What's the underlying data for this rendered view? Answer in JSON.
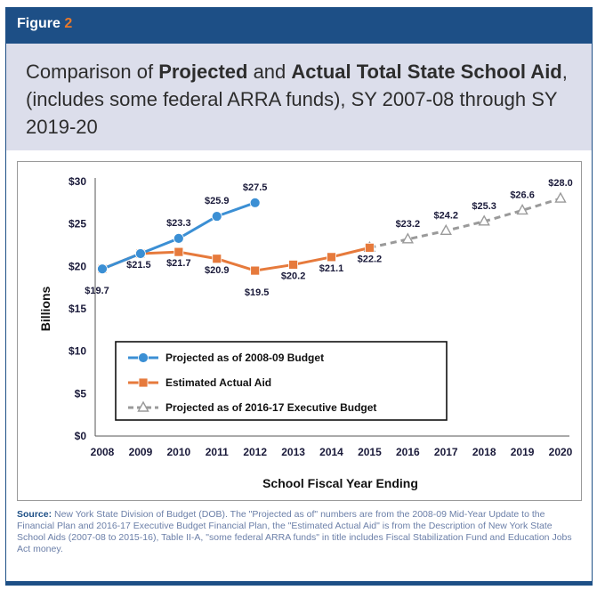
{
  "figure_label": "Figure",
  "figure_number": "2",
  "title": {
    "part1": "Comparison of ",
    "bold1": "Projected",
    "part2": " and ",
    "bold2": "Actual Total State School Aid",
    "part3": ", (includes some federal ARRA funds), SY 2007-08 through SY 2019-20"
  },
  "source": {
    "label": "Source:",
    "text": " New York State Division of Budget (DOB). The \"Projected as of\" numbers are from the 2008-09 Mid-Year Update to the Financial Plan and 2016-17 Executive Budget Financial Plan, the \"Estimated Actual Aid\" is from the Description of New York State School Aids (2007-08 to 2015-16), Table II-A, \"some federal ARRA funds\" in title includes Fiscal Stabilization Fund and Education Jobs Act money."
  },
  "colors": {
    "header": "#1d4f86",
    "band": "#dcdeeb",
    "series_projected_2008": "#3b8fd4",
    "series_actual": "#e67a3c",
    "series_projected_2016": "#9a9a9a"
  },
  "chart_data": {
    "type": "line",
    "x": [
      2008,
      2009,
      2010,
      2011,
      2012,
      2013,
      2014,
      2015,
      2016,
      2017,
      2018,
      2019,
      2020
    ],
    "xlabel": "School Fiscal Year Ending",
    "ylabel": "Billions",
    "ylim": [
      0,
      30
    ],
    "yticks": [
      0,
      5,
      10,
      15,
      20,
      25,
      30
    ],
    "ytick_labels": [
      "$0",
      "$5",
      "$10",
      "$15",
      "$20",
      "$25",
      "$30"
    ],
    "legend_position": "bottom-left",
    "grid": false,
    "series": [
      {
        "name": "Projected as of 2008-09 Budget",
        "marker": "circle",
        "dashed": false,
        "points": [
          [
            2008,
            19.7
          ],
          [
            2009,
            21.5
          ],
          [
            2010,
            23.3
          ],
          [
            2011,
            25.9
          ],
          [
            2012,
            27.5
          ]
        ],
        "labels": [
          "",
          "",
          "$23.3",
          "$25.9",
          "$27.5"
        ]
      },
      {
        "name": "Estimated Actual Aid",
        "marker": "square",
        "dashed": false,
        "points": [
          [
            2008,
            19.7
          ],
          [
            2009,
            21.5
          ],
          [
            2010,
            21.7
          ],
          [
            2011,
            20.9
          ],
          [
            2012,
            19.5
          ],
          [
            2013,
            20.2
          ],
          [
            2014,
            21.1
          ],
          [
            2015,
            22.2
          ]
        ],
        "labels": [
          "$19.7",
          "$21.5",
          "$21.7",
          "$20.9",
          "$19.5",
          "$20.2",
          "$21.1",
          "$22.2"
        ]
      },
      {
        "name": "Projected as of 2016-17 Executive Budget",
        "marker": "triangle",
        "dashed": true,
        "points": [
          [
            2015,
            22.2
          ],
          [
            2016,
            23.2
          ],
          [
            2017,
            24.2
          ],
          [
            2018,
            25.3
          ],
          [
            2019,
            26.6
          ],
          [
            2020,
            28.0
          ]
        ],
        "labels": [
          "",
          "$23.2",
          "$24.2",
          "$25.3",
          "$26.6",
          "$28.0"
        ]
      }
    ]
  }
}
